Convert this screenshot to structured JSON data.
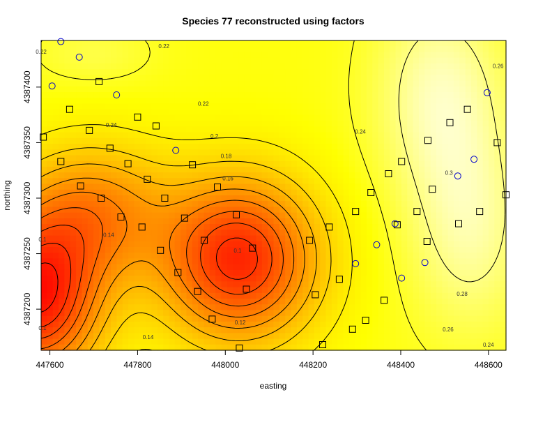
{
  "chart_data": {
    "type": "heatmap",
    "title": "Species 77 reconstructed using factors",
    "xlabel": "easting",
    "ylabel": "northing",
    "xlim": [
      447580,
      448640
    ],
    "ylim": [
      4387163,
      4387442
    ],
    "x_ticks": [
      447600,
      447800,
      448000,
      448200,
      448400,
      448600
    ],
    "y_ticks": [
      4387200,
      4387250,
      4387300,
      4387350,
      4387400
    ],
    "grid": false,
    "colormap": "heat",
    "colors": {
      "low": "#ff0000",
      "mid": "#ff8c00",
      "high": "#ffff00",
      "peak": "#ffffe0"
    },
    "value_range": [
      0.08,
      0.32
    ],
    "contour_levels": [
      0.1,
      0.12,
      0.14,
      0.16,
      0.18,
      0.2,
      0.22,
      0.24,
      0.26,
      0.28,
      0.3
    ],
    "contour_labels": [
      {
        "text": "0.22",
        "x": 447580,
        "y": 4387432
      },
      {
        "text": "0.22",
        "x": 447860,
        "y": 4387437
      },
      {
        "text": "0.24",
        "x": 447740,
        "y": 4387366
      },
      {
        "text": "0.22",
        "x": 447950,
        "y": 4387385
      },
      {
        "text": "0.24",
        "x": 448308,
        "y": 4387360
      },
      {
        "text": "0.26",
        "x": 448622,
        "y": 4387419
      },
      {
        "text": "0.3",
        "x": 448510,
        "y": 4387323
      },
      {
        "text": "0.2",
        "x": 447975,
        "y": 4387356
      },
      {
        "text": "0.18",
        "x": 448002,
        "y": 4387338
      },
      {
        "text": "0.16",
        "x": 448006,
        "y": 4387318
      },
      {
        "text": "0.14",
        "x": 447734,
        "y": 4387267
      },
      {
        "text": "0.1",
        "x": 448028,
        "y": 4387253
      },
      {
        "text": "0.12",
        "x": 448034,
        "y": 4387188
      },
      {
        "text": "0.14",
        "x": 447824,
        "y": 4387175
      },
      {
        "text": "0.28",
        "x": 448540,
        "y": 4387214
      },
      {
        "text": "0.26",
        "x": 448508,
        "y": 4387182
      },
      {
        "text": "0.24",
        "x": 448600,
        "y": 4387168
      },
      {
        "text": "0.1",
        "x": 447583,
        "y": 4387183
      },
      {
        "text": "0.1",
        "x": 447583,
        "y": 4387263
      }
    ],
    "field_components": [
      {
        "x": 447570,
        "y": 4387210,
        "sx": 140,
        "sy": 70,
        "amp": -0.175
      },
      {
        "x": 448030,
        "y": 4387245,
        "sx": 170,
        "sy": 70,
        "amp": -0.165
      },
      {
        "x": 447700,
        "y": 4387285,
        "sx": 170,
        "sy": 60,
        "amp": -0.09
      },
      {
        "x": 447700,
        "y": 4387430,
        "sx": 140,
        "sy": 30,
        "amp": 0.012
      },
      {
        "x": 448490,
        "y": 4387395,
        "sx": 150,
        "sy": 95,
        "amp": 0.035
      },
      {
        "x": 448560,
        "y": 4387270,
        "sx": 140,
        "sy": 95,
        "amp": 0.03
      }
    ],
    "field_base": 0.275,
    "series": [
      {
        "name": "",
        "marker": "square",
        "color": "#000000",
        "points": [
          [
            447585,
            4387355
          ],
          [
            447625,
            4387333
          ],
          [
            447645,
            4387380
          ],
          [
            447670,
            4387311
          ],
          [
            447690,
            4387361
          ],
          [
            447712,
            4387405
          ],
          [
            447717,
            4387300
          ],
          [
            447737,
            4387345
          ],
          [
            447762,
            4387283
          ],
          [
            447778,
            4387331
          ],
          [
            447800,
            4387373
          ],
          [
            447810,
            4387274
          ],
          [
            447822,
            4387317
          ],
          [
            447842,
            4387365
          ],
          [
            447852,
            4387253
          ],
          [
            447862,
            4387300
          ],
          [
            447892,
            4387233
          ],
          [
            447907,
            4387282
          ],
          [
            447925,
            4387330
          ],
          [
            447937,
            4387216
          ],
          [
            447952,
            4387262
          ],
          [
            447970,
            4387191
          ],
          [
            447982,
            4387310
          ],
          [
            448025,
            4387285
          ],
          [
            448032,
            4387165
          ],
          [
            448048,
            4387218
          ],
          [
            448062,
            4387255
          ],
          [
            448192,
            4387262
          ],
          [
            448205,
            4387213
          ],
          [
            448222,
            4387168
          ],
          [
            448237,
            4387274
          ],
          [
            448260,
            4387227
          ],
          [
            448290,
            4387182
          ],
          [
            448297,
            4387288
          ],
          [
            448320,
            4387190
          ],
          [
            448332,
            4387305
          ],
          [
            448362,
            4387208
          ],
          [
            448372,
            4387322
          ],
          [
            448392,
            4387276
          ],
          [
            448402,
            4387333
          ],
          [
            448437,
            4387288
          ],
          [
            448460,
            4387261
          ],
          [
            448462,
            4387352
          ],
          [
            448472,
            4387308
          ],
          [
            448512,
            4387368
          ],
          [
            448532,
            4387277
          ],
          [
            448552,
            4387380
          ],
          [
            448580,
            4387288
          ],
          [
            448620,
            4387350
          ],
          [
            448640,
            4387303
          ]
        ]
      },
      {
        "name": "",
        "marker": "circle",
        "color": "#0000cc",
        "points": [
          [
            447605,
            4387401
          ],
          [
            447625,
            4387441
          ],
          [
            447667,
            4387427
          ],
          [
            447752,
            4387393
          ],
          [
            447887,
            4387343
          ],
          [
            448297,
            4387241
          ],
          [
            448345,
            4387258
          ],
          [
            448387,
            4387277
          ],
          [
            448402,
            4387228
          ],
          [
            448455,
            4387242
          ],
          [
            448530,
            4387320
          ],
          [
            448567,
            4387335
          ],
          [
            448597,
            4387395
          ]
        ]
      }
    ]
  }
}
